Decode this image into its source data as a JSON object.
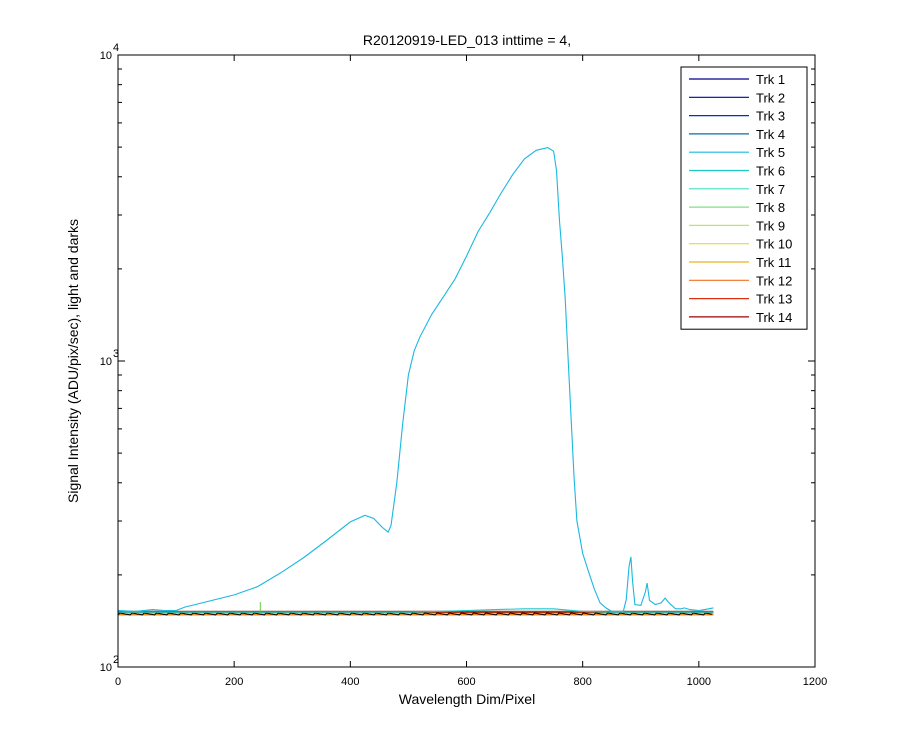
{
  "chart_data": {
    "type": "line",
    "title": "R20120919-LED_013 inttime = 4,",
    "xlabel": "Wavelength Dim/Pixel",
    "ylabel": "Signal Intensity (ADU/pix/sec), light and darks",
    "xlim": [
      0,
      1200
    ],
    "ylim": [
      100,
      10000
    ],
    "yscale": "log",
    "xticks": [
      "0",
      "200",
      "400",
      "600",
      "800",
      "1000",
      "1200"
    ],
    "yticks": [
      {
        "value": 100,
        "base": "10",
        "exp": "2"
      },
      {
        "value": 1000,
        "base": "10",
        "exp": "3"
      },
      {
        "value": 10000,
        "base": "10",
        "exp": "4"
      }
    ],
    "grid": false,
    "legend_position": "top-right",
    "series": [
      {
        "name": "Trk 1",
        "color": "#00008f"
      },
      {
        "name": "Trk 2",
        "color": "#0000b0"
      },
      {
        "name": "Trk 3",
        "color": "#0030c8"
      },
      {
        "name": "Trk 4",
        "color": "#0070a8"
      },
      {
        "name": "Trk 5",
        "color": "#1ab8e0",
        "x": [
          0,
          30,
          60,
          80,
          100,
          115,
          150,
          200,
          240,
          280,
          320,
          360,
          400,
          425,
          440,
          455,
          465,
          470,
          480,
          490,
          500,
          510,
          520,
          540,
          560,
          580,
          600,
          620,
          640,
          660,
          680,
          700,
          720,
          740,
          750,
          755,
          760,
          765,
          770,
          775,
          780,
          785,
          790,
          800,
          810,
          820,
          830,
          840,
          850,
          870,
          875,
          880,
          883,
          886,
          890,
          900,
          908,
          911,
          915,
          925,
          935,
          942,
          950,
          960,
          970,
          975,
          985,
          1000,
          1010,
          1025
        ],
        "y": [
          153,
          152,
          154,
          153,
          153,
          157,
          163,
          172,
          183,
          203,
          228,
          260,
          298,
          313,
          306,
          286,
          276,
          290,
          400,
          620,
          900,
          1080,
          1200,
          1420,
          1620,
          1850,
          2200,
          2650,
          3050,
          3550,
          4080,
          4580,
          4880,
          4980,
          4850,
          4200,
          2900,
          2200,
          1600,
          1020,
          660,
          420,
          300,
          235,
          205,
          180,
          162,
          156,
          152,
          152,
          166,
          214,
          229,
          190,
          160,
          159,
          176,
          188,
          165,
          160,
          162,
          168,
          161,
          155,
          155,
          156,
          154,
          153,
          154,
          156
        ]
      },
      {
        "name": "Trk 6",
        "color": "#1ec8c8",
        "x": [
          0,
          100,
          200,
          300,
          400,
          450,
          500,
          550,
          600,
          650,
          700,
          750,
          800,
          850,
          900,
          1025
        ],
        "y": [
          151,
          151,
          151,
          151,
          151,
          151,
          151,
          152,
          153,
          154,
          155,
          155,
          152,
          151,
          151,
          151
        ]
      },
      {
        "name": "Trk 7",
        "color": "#40e0c8"
      },
      {
        "name": "Trk 8",
        "color": "#80e080"
      },
      {
        "name": "Trk 9",
        "color": "#b8e860"
      },
      {
        "name": "Trk 10",
        "color": "#e0e020"
      },
      {
        "name": "Trk 11",
        "color": "#f0b020"
      },
      {
        "name": "Trk 12",
        "color": "#f07020"
      },
      {
        "name": "Trk 13",
        "color": "#e03010"
      },
      {
        "name": "Trk 14",
        "color": "#a00000"
      }
    ],
    "baseline": {
      "value": 150,
      "x": [
        0,
        1025
      ]
    }
  }
}
